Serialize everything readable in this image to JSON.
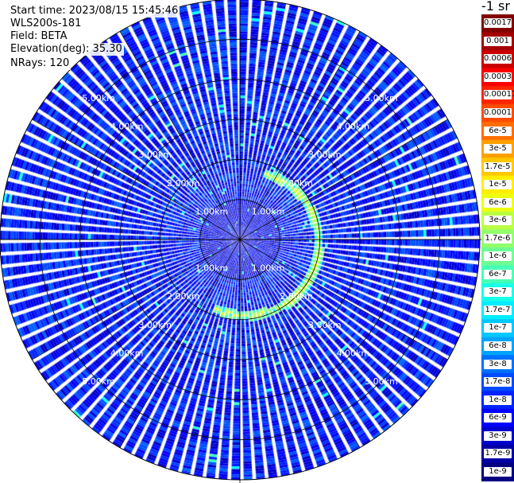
{
  "header": {
    "start_time": "Start time: 2023/08/15 15:45:46",
    "device": "WLS200s-181",
    "field": "Field: BETA",
    "elevation": "Elevation(deg): 35.30",
    "nrays": "NRays: 120"
  },
  "colorbar": {
    "unit": "-1 sr",
    "labels": [
      "0.0017",
      "0.001",
      "0.0006",
      "0.0003",
      "0.00017",
      "0.0001",
      "6e-5",
      "3e-5",
      "1.7e-5",
      "1e-5",
      "6e-6",
      "3e-6",
      "1.7e-6",
      "1e-6",
      "6e-7",
      "3e-7",
      "1.7e-7",
      "1e-7",
      "6e-8",
      "3e-8",
      "1.7e-8",
      "1e-8",
      "6e-9",
      "3e-9",
      "1.7e-9",
      "1e-9"
    ]
  },
  "chart_data": {
    "type": "heatmap",
    "projection": "polar (PPI)",
    "field": "BETA",
    "elevation_deg": 35.3,
    "n_rays": 120,
    "range_rings_km": [
      1,
      2,
      3,
      4,
      5
    ],
    "range_ring_labels": [
      "1.00km",
      "2.00km",
      "3.00km",
      "4.00km",
      "5.00km"
    ],
    "radial_lines_deg": [
      0,
      30,
      60,
      90,
      120,
      150,
      180,
      210,
      240,
      270,
      300,
      330
    ],
    "max_range_km": 6.0,
    "colorscale": "jet, log scale",
    "value_range": [
      1e-09,
      0.0017
    ],
    "features": [
      {
        "description": "high-backscatter ring",
        "range_km": [
          1.6,
          2.1
        ],
        "azimuth_deg": [
          20,
          200
        ],
        "approx_value": "1e-6 to 1e-5"
      },
      {
        "description": "background",
        "approx_value": "3e-9 to 6e-8"
      }
    ]
  }
}
